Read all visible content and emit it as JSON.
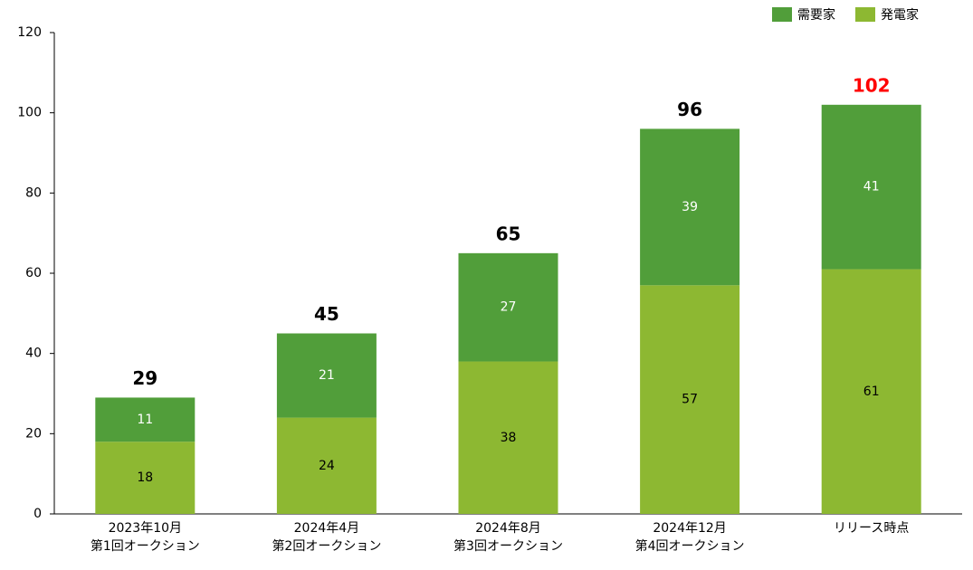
{
  "chart_data": {
    "type": "stacked_bar",
    "categories": [
      [
        "2023年10月",
        "第1回オークション"
      ],
      [
        "2024年4月",
        "第2回オークション"
      ],
      [
        "2024年8月",
        "第3回オークション"
      ],
      [
        "2024年12月",
        "第4回オークション"
      ],
      [
        "リリース時点"
      ]
    ],
    "series": [
      {
        "name": "発電家",
        "color": "#8db832",
        "label_color": "#000000",
        "values": [
          18,
          24,
          38,
          57,
          61
        ]
      },
      {
        "name": "需要家",
        "color": "#519e3a",
        "label_color": "#ffffff",
        "values": [
          11,
          21,
          27,
          39,
          41
        ]
      }
    ],
    "totals": [
      29,
      45,
      65,
      96,
      102
    ],
    "total_colors": [
      "#000000",
      "#000000",
      "#000000",
      "#000000",
      "#ff0000"
    ],
    "ylim": [
      0,
      120
    ],
    "yticks": [
      0,
      20,
      40,
      60,
      80,
      100,
      120
    ],
    "grid": false,
    "legend": "top-right"
  }
}
